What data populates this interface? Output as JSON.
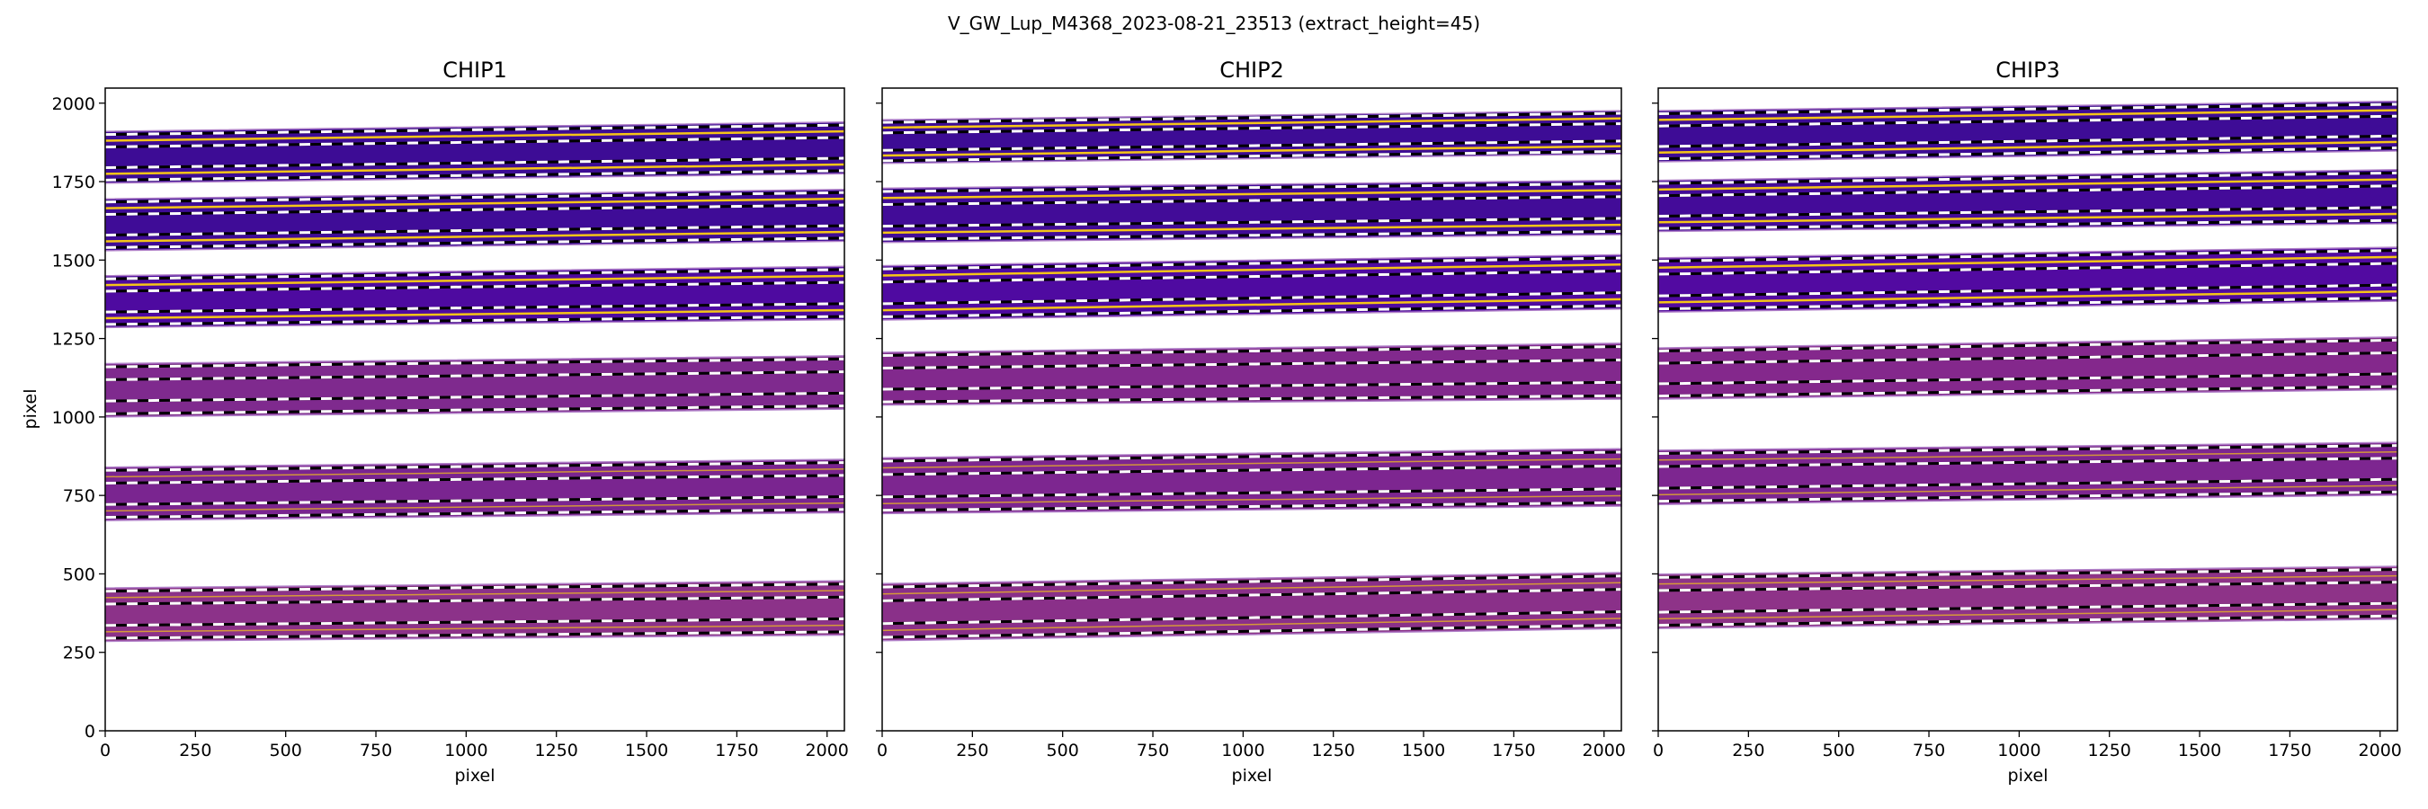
{
  "chart_data": [
    {
      "type": "heatmap",
      "suptitle": "V_GW_Lup_M4368_2023-08-21_23513  (extract_height=45)",
      "title": "CHIP1",
      "xlabel": "pixel",
      "ylabel": "pixel",
      "xlim": [
        0,
        2048
      ],
      "ylim": [
        0,
        2048
      ],
      "xticks": [
        "0",
        "250",
        "500",
        "750",
        "1000",
        "1250",
        "1500",
        "1750",
        "2000"
      ],
      "yticks": [
        "0",
        "250",
        "500",
        "750",
        "1000",
        "1250",
        "1500",
        "1750",
        "2000"
      ],
      "orders": [
        {
          "bottom": [
            1745,
            1775
          ],
          "top": [
            1910,
            1940
          ],
          "color": "#3d0c95",
          "traces": true
        },
        {
          "bottom": [
            1530,
            1560
          ],
          "top": [
            1695,
            1725
          ],
          "color": "#3f0c97",
          "traces": true
        },
        {
          "bottom": [
            1285,
            1310
          ],
          "top": [
            1450,
            1480
          ],
          "color": "#4e0aa0",
          "traces": true
        },
        {
          "bottom": [
            1000,
            1025
          ],
          "top": [
            1170,
            1195
          ],
          "color": "#7f2a8e",
          "traces": false
        },
        {
          "bottom": [
            670,
            695
          ],
          "top": [
            840,
            865
          ],
          "color": "#7a2590",
          "traces": true
        },
        {
          "bottom": [
            285,
            305
          ],
          "top": [
            455,
            478
          ],
          "color": "#8c3289",
          "traces": true
        }
      ]
    },
    {
      "type": "heatmap",
      "title": "CHIP2",
      "xlabel": "pixel",
      "xlim": [
        0,
        2048
      ],
      "ylim": [
        0,
        2048
      ],
      "xticks": [
        "0",
        "250",
        "500",
        "750",
        "1000",
        "1250",
        "1500",
        "1750",
        "2000"
      ],
      "orders": [
        {
          "bottom": [
            1808,
            1838
          ],
          "top": [
            1947,
            1976
          ],
          "color": "#3d0c95",
          "traces": true
        },
        {
          "bottom": [
            1556,
            1581
          ],
          "top": [
            1729,
            1754
          ],
          "color": "#420c98",
          "traces": true
        },
        {
          "bottom": [
            1309,
            1344
          ],
          "top": [
            1482,
            1517
          ],
          "color": "#4f0aa1",
          "traces": true
        },
        {
          "bottom": [
            1038,
            1057
          ],
          "top": [
            1206,
            1235
          ],
          "color": "#82298d",
          "traces": false
        },
        {
          "bottom": [
            692,
            716
          ],
          "top": [
            870,
            899
          ],
          "color": "#7d2690",
          "traces": true
        },
        {
          "bottom": [
            287,
            326
          ],
          "top": [
            469,
            504
          ],
          "color": "#8a3089",
          "traces": true
        }
      ]
    },
    {
      "type": "heatmap",
      "title": "CHIP3",
      "xlabel": "pixel",
      "xlim": [
        0,
        2048
      ],
      "ylim": [
        0,
        2048
      ],
      "xticks": [
        "0",
        "250",
        "500",
        "750",
        "1000",
        "1250",
        "1500",
        "1750",
        "2000"
      ],
      "orders": [
        {
          "bottom": [
            1813,
            1848
          ],
          "top": [
            1976,
            2006
          ],
          "color": "#3e0c96",
          "traces": true
        },
        {
          "bottom": [
            1591,
            1616
          ],
          "top": [
            1754,
            1788
          ],
          "color": "#440b99",
          "traces": true
        },
        {
          "bottom": [
            1334,
            1369
          ],
          "top": [
            1507,
            1541
          ],
          "color": "#520aa1",
          "traces": true
        },
        {
          "bottom": [
            1057,
            1087
          ],
          "top": [
            1220,
            1255
          ],
          "color": "#84288c",
          "traces": false
        },
        {
          "bottom": [
            721,
            751
          ],
          "top": [
            894,
            919
          ],
          "color": "#7d2690",
          "traces": true
        },
        {
          "bottom": [
            326,
            356
          ],
          "top": [
            499,
            524
          ],
          "color": "#8e3388",
          "traces": true
        }
      ]
    }
  ],
  "colors": {
    "trace": "#f5c518",
    "dash_dark": "#000000",
    "dash_light": "#ffffff"
  }
}
